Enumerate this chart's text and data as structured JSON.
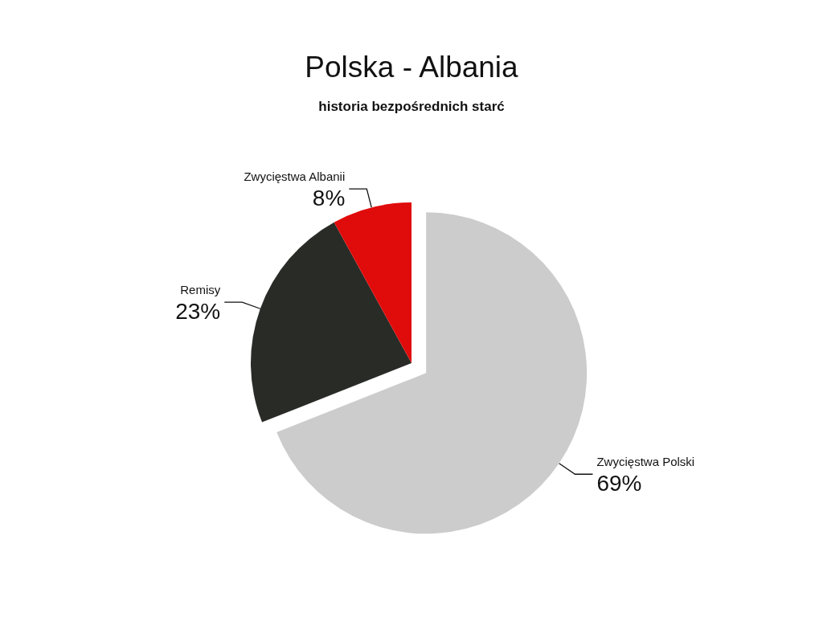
{
  "chart_data": {
    "type": "pie",
    "title": "Polska - Albania",
    "subtitle": "historia bezpośrednich starć",
    "categories": [
      "Zwycięstwa Polski",
      "Remisy",
      "Zwycięstwa Albanii"
    ],
    "values": [
      69,
      23,
      8
    ],
    "value_labels": [
      "69%",
      "23%",
      "8%"
    ],
    "colors": [
      "#cccccc",
      "#282b26",
      "#e00b0b"
    ]
  }
}
